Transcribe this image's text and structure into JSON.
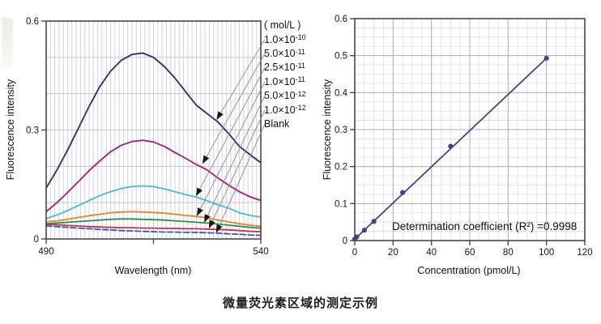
{
  "caption": "微量荧光素区域的测定示例",
  "colors": {
    "frame": "#4d4646",
    "grid_major": "#b0aeb6",
    "grid_minor": "#e0dfe4",
    "left_vgrid": "#d5d2dd",
    "left_hgrid": "#c6c4cd",
    "arrow": "#8a8a8a",
    "arrowhead": "#151515",
    "text": "#141414"
  },
  "chart_data": [
    {
      "type": "line",
      "title": "",
      "xlabel": "Wavelength (nm)",
      "ylabel": "Fluorescence intensity",
      "xlim": [
        490,
        540
      ],
      "ylim": [
        0,
        0.6
      ],
      "x_tick_labels": [
        490,
        540
      ],
      "x_ticks": [
        490,
        515,
        540
      ],
      "y_tick_labels": [
        0,
        0.3,
        0.6
      ],
      "grid": {
        "x_minor_step": 1,
        "y_major_step": 0.1
      },
      "legend_header": "( mol/L )",
      "x_nm": [
        490,
        492.5,
        495,
        497.5,
        500,
        502.5,
        505,
        507.5,
        510,
        512.5,
        515,
        517.5,
        520,
        522.5,
        525,
        527.5,
        530,
        532.5,
        535,
        537.5,
        540
      ],
      "series": [
        {
          "label_base": "1.0×10",
          "label_exp": "-10",
          "color": "#2d2b6b",
          "dashed": false,
          "arrow_target": {
            "x": 529.7,
            "y": 0.328
          },
          "values": [
            0.14,
            0.19,
            0.245,
            0.305,
            0.365,
            0.42,
            0.462,
            0.492,
            0.508,
            0.512,
            0.5,
            0.475,
            0.443,
            0.405,
            0.368,
            0.345,
            0.322,
            0.29,
            0.255,
            0.232,
            0.21
          ]
        },
        {
          "label_base": "5.0×10",
          "label_exp": "-11",
          "color": "#a01d7c",
          "dashed": false,
          "arrow_target": {
            "x": 526.4,
            "y": 0.207
          },
          "values": [
            0.075,
            0.1,
            0.128,
            0.158,
            0.188,
            0.215,
            0.24,
            0.258,
            0.268,
            0.272,
            0.267,
            0.255,
            0.238,
            0.222,
            0.205,
            0.19,
            0.168,
            0.148,
            0.13,
            0.116,
            0.106
          ]
        },
        {
          "label_base": "2.5×10",
          "label_exp": "-11",
          "color": "#4cb6d8",
          "dashed": false,
          "arrow_target": {
            "x": 524.9,
            "y": 0.118
          },
          "values": [
            0.056,
            0.066,
            0.078,
            0.092,
            0.106,
            0.119,
            0.13,
            0.139,
            0.144,
            0.146,
            0.144,
            0.138,
            0.13,
            0.122,
            0.115,
            0.105,
            0.094,
            0.085,
            0.072,
            0.065,
            0.06
          ]
        },
        {
          "label_base": "1.0×10",
          "label_exp": "-11",
          "color": "#e0862c",
          "dashed": false,
          "arrow_target": {
            "x": 525.1,
            "y": 0.063
          },
          "values": [
            0.047,
            0.05,
            0.054,
            0.059,
            0.064,
            0.068,
            0.072,
            0.074,
            0.075,
            0.074,
            0.073,
            0.071,
            0.068,
            0.065,
            0.062,
            0.058,
            0.052,
            0.047,
            0.042,
            0.038,
            0.035
          ]
        },
        {
          "label_base": "5.0×10",
          "label_exp": "-12",
          "color": "#2e8c4f",
          "dashed": false,
          "arrow_target": {
            "x": 526.8,
            "y": 0.045
          },
          "values": [
            0.042,
            0.044,
            0.046,
            0.048,
            0.05,
            0.052,
            0.054,
            0.055,
            0.055,
            0.054,
            0.053,
            0.052,
            0.05,
            0.048,
            0.046,
            0.044,
            0.041,
            0.038,
            0.035,
            0.032,
            0.03
          ]
        },
        {
          "label_base": "1.0×10",
          "label_exp": "-12",
          "color": "#c43535",
          "dashed": false,
          "arrow_target": {
            "x": 527.9,
            "y": 0.029
          },
          "values": [
            0.04,
            0.039,
            0.037,
            0.036,
            0.034,
            0.033,
            0.032,
            0.031,
            0.031,
            0.03,
            0.03,
            0.029,
            0.029,
            0.028,
            0.028,
            0.027,
            0.026,
            0.025,
            0.023,
            0.021,
            0.02
          ]
        },
        {
          "label_base": "Blank",
          "label_exp": "",
          "color": "#3a55c0",
          "dashed": true,
          "arrow_target": {
            "x": 529.6,
            "y": 0.017
          },
          "values": [
            0.036,
            0.034,
            0.032,
            0.03,
            0.028,
            0.026,
            0.025,
            0.023,
            0.022,
            0.021,
            0.02,
            0.019,
            0.019,
            0.018,
            0.018,
            0.017,
            0.016,
            0.014,
            0.013,
            0.011,
            0.01
          ]
        }
      ]
    },
    {
      "type": "scatter",
      "title": "",
      "xlabel": "Concentration (pmol/L)",
      "ylabel": "Fluorescence intensity",
      "xlim": [
        0,
        120
      ],
      "ylim": [
        0,
        0.6
      ],
      "x_ticks": [
        0,
        20,
        40,
        60,
        80,
        100,
        120
      ],
      "y_ticks": [
        0,
        0.1,
        0.2,
        0.3,
        0.4,
        0.5,
        0.6
      ],
      "grid": {
        "x_major_step": 20,
        "x_minor_step": 5,
        "y_major_step": 0.1,
        "y_minor_step": 0.025
      },
      "annotation": "Determination coefficient (R²) =0.9998",
      "points": {
        "x": [
          0,
          1,
          5,
          10,
          25,
          50,
          100
        ],
        "y": [
          0.004,
          0.01,
          0.028,
          0.052,
          0.13,
          0.255,
          0.493
        ]
      },
      "fit_line": {
        "x": [
          0,
          100
        ],
        "y": [
          0.004,
          0.493
        ]
      },
      "line_color": "#3f3d7d",
      "marker_color": "#45437f"
    }
  ]
}
